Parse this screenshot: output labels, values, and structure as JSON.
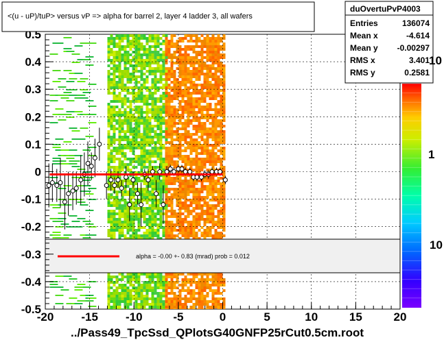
{
  "title": "<(u - uP)/tuP> versus   vP => alpha for barrel 2, layer 4 ladder 3, all wafers",
  "footer": "../Pass49_TpcSsd_QPlotsG40GNFP25rCut0.5cm.root",
  "stats": {
    "name": "duOvertuPvP4003",
    "rows": [
      {
        "label": "Entries",
        "value": "136074"
      },
      {
        "label": "Mean x",
        "value": "-4.614"
      },
      {
        "label": "Mean y",
        "value": "-0.00297"
      },
      {
        "label": "RMS x",
        "value": "3.401"
      },
      {
        "label": "RMS y",
        "value": "0.2581"
      }
    ]
  },
  "fit_legend": "alpha =   -0.00 +-  0.83 (mrad) prob = 0.012",
  "colorbar_labels": [
    "10",
    "1",
    "10"
  ],
  "colors": {
    "fit_line": "#ff0000",
    "green": "#33cc33",
    "orange": "#ff6600",
    "legend_bg": "#f0f0f0"
  },
  "chart_data": {
    "type": "heatmap",
    "title": "<(u - uP)/tuP> versus   vP => alpha for barrel 2, layer 4 ladder 3, all wafers",
    "xlim": [
      -20,
      20
    ],
    "ylim": [
      -0.5,
      0.5
    ],
    "x_ticks": [
      -20,
      -15,
      -10,
      -5,
      0,
      5,
      10,
      15,
      20
    ],
    "x_tick_labels": [
      "-20",
      "-15",
      "-10",
      "-5",
      "0",
      "5",
      "10",
      "15",
      "20"
    ],
    "y_ticks": [
      -0.5,
      -0.4,
      -0.3,
      -0.2,
      -0.1,
      0,
      0.1,
      0.2,
      0.3,
      0.4,
      0.5
    ],
    "y_tick_labels": [
      "-0.5",
      "-0.4",
      "-0.3",
      "-0.2",
      "-0.1",
      "0",
      "0.1",
      "0.2",
      "0.3",
      "0.4",
      "0.5"
    ],
    "grid": true,
    "occupancy_bands": [
      {
        "x_range": [
          -19.5,
          -15
        ],
        "density": "sparse",
        "color": "green"
      },
      {
        "x_range": [
          -13,
          -6.5
        ],
        "density": "dense",
        "color": "green-yellow"
      },
      {
        "x_range": [
          -6.5,
          0
        ],
        "density": "dense",
        "color": "orange"
      }
    ],
    "fit_line": {
      "x": [
        -19.5,
        0
      ],
      "y": [
        -0.01,
        -0.01
      ]
    },
    "profile_points": [
      {
        "x": -19.6,
        "y": -0.05,
        "err": 0.08
      },
      {
        "x": -19.2,
        "y": -0.04,
        "err": 0.07
      },
      {
        "x": -18.7,
        "y": -0.05,
        "err": 0.06
      },
      {
        "x": -18.3,
        "y": -0.04,
        "err": 0.09
      },
      {
        "x": -17.8,
        "y": -0.11,
        "err": 0.1
      },
      {
        "x": -17.4,
        "y": -0.08,
        "err": 0.08
      },
      {
        "x": -16.9,
        "y": -0.07,
        "err": 0.07
      },
      {
        "x": -16.5,
        "y": -0.06,
        "err": 0.06
      },
      {
        "x": -16.0,
        "y": -0.03,
        "err": 0.09
      },
      {
        "x": -15.6,
        "y": -0.01,
        "err": 0.08
      },
      {
        "x": -15.2,
        "y": 0.03,
        "err": 0.08
      },
      {
        "x": -14.8,
        "y": 0.02,
        "err": 0.05
      },
      {
        "x": -14.4,
        "y": 0.05,
        "err": 0.07
      },
      {
        "x": -13.9,
        "y": 0.1,
        "err": 0.06
      },
      {
        "x": -13.1,
        "y": -0.05,
        "err": 0.05
      },
      {
        "x": -12.6,
        "y": -0.03,
        "err": 0.04
      },
      {
        "x": -12.2,
        "y": -0.05,
        "err": 0.03
      },
      {
        "x": -11.8,
        "y": -0.03,
        "err": 0.03
      },
      {
        "x": -11.4,
        "y": -0.06,
        "err": 0.03
      },
      {
        "x": -10.9,
        "y": -0.02,
        "err": 0.04
      },
      {
        "x": -10.5,
        "y": -0.12,
        "err": 0.06
      },
      {
        "x": -10.1,
        "y": -0.03,
        "err": 0.03
      },
      {
        "x": -9.6,
        "y": -0.08,
        "err": 0.04
      },
      {
        "x": -9.2,
        "y": -0.12,
        "err": 0.08
      },
      {
        "x": -8.8,
        "y": -0.01,
        "err": 0.02
      },
      {
        "x": -8.4,
        "y": -0.03,
        "err": 0.04
      },
      {
        "x": -7.9,
        "y": 0.0,
        "err": 0.02
      },
      {
        "x": -7.5,
        "y": -0.08,
        "err": 0.05
      },
      {
        "x": -7.1,
        "y": 0.0,
        "err": 0.03
      },
      {
        "x": -6.7,
        "y": -0.12,
        "err": 0.07
      },
      {
        "x": -6.3,
        "y": 0.0,
        "err": 0.02
      },
      {
        "x": -5.9,
        "y": 0.01,
        "err": 0.015
      },
      {
        "x": -5.5,
        "y": 0.0,
        "err": 0.015
      },
      {
        "x": -5.0,
        "y": 0.01,
        "err": 0.015
      },
      {
        "x": -4.6,
        "y": 0.01,
        "err": 0.015
      },
      {
        "x": -4.2,
        "y": 0.0,
        "err": 0.015
      },
      {
        "x": -3.7,
        "y": 0.0,
        "err": 0.015
      },
      {
        "x": -3.3,
        "y": -0.02,
        "err": 0.015
      },
      {
        "x": -2.9,
        "y": -0.02,
        "err": 0.015
      },
      {
        "x": -2.4,
        "y": -0.02,
        "err": 0.015
      },
      {
        "x": -2.0,
        "y": -0.01,
        "err": 0.015
      },
      {
        "x": -1.6,
        "y": -0.01,
        "err": 0.015
      },
      {
        "x": -1.2,
        "y": 0.0,
        "err": 0.015
      },
      {
        "x": -0.7,
        "y": 0.0,
        "err": 0.015
      },
      {
        "x": -0.3,
        "y": 0.0,
        "err": 0.015
      },
      {
        "x": 0.3,
        "y": -0.03,
        "err": 0.015
      }
    ]
  }
}
